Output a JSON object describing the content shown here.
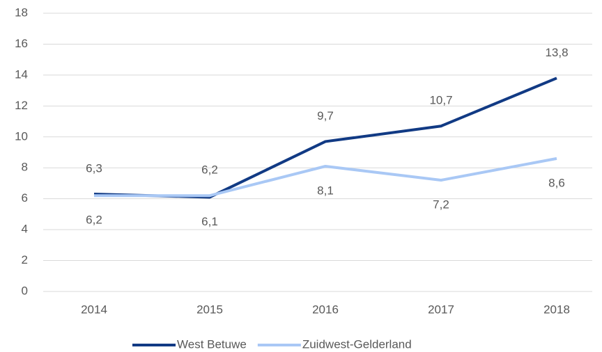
{
  "chart_data": {
    "type": "line",
    "categories": [
      "2014",
      "2015",
      "2016",
      "2017",
      "2018"
    ],
    "series": [
      {
        "name": "West Betuwe",
        "color": "#113a84",
        "values": [
          6.3,
          6.1,
          9.7,
          10.7,
          13.8
        ],
        "value_labels": [
          "6,3",
          "6,1",
          "9,7",
          "10,7",
          "13,8"
        ]
      },
      {
        "name": "Zuidwest-Gelderland",
        "color": "#a9c8f5",
        "values": [
          6.2,
          6.2,
          8.1,
          7.2,
          8.6
        ],
        "value_labels": [
          "6,2",
          "6,2",
          "8,1",
          "7,2",
          "8,6"
        ]
      }
    ],
    "ylim": [
      0,
      18
    ],
    "yticks": [
      0,
      2,
      4,
      6,
      8,
      10,
      12,
      14,
      16,
      18
    ],
    "grid": true,
    "legend": "bottom"
  }
}
